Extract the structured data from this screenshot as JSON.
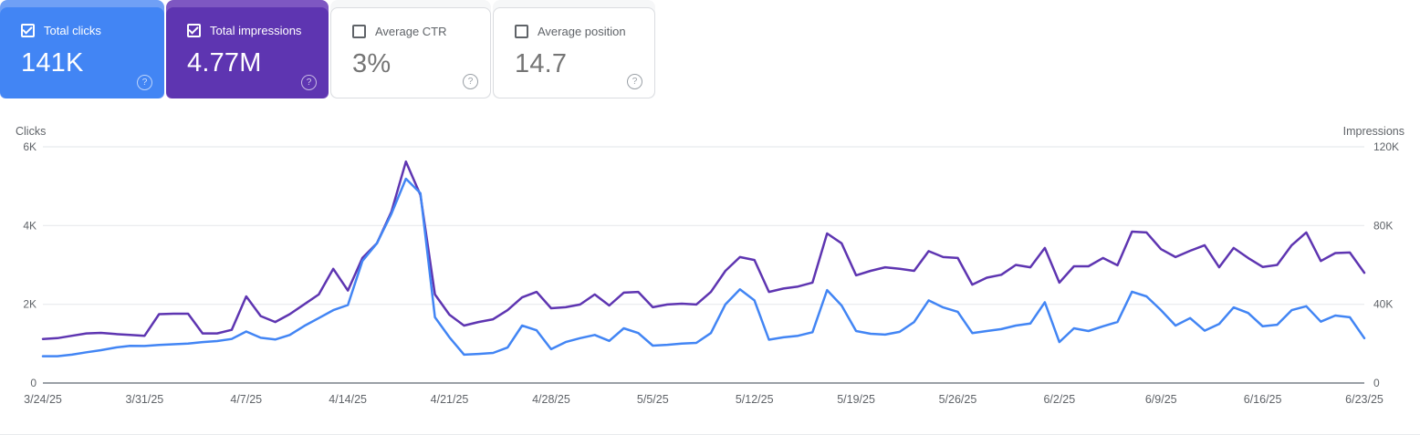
{
  "help_icon_glyph": "?",
  "cards": [
    {
      "label": "Total clicks",
      "value": "141K",
      "selected": true,
      "bg_color": "#4285f4",
      "halo_color": "#6fa0f6"
    },
    {
      "label": "Total impressions",
      "value": "4.77M",
      "selected": true,
      "bg_color": "#5e35b1",
      "halo_color": "#7e57c2"
    },
    {
      "label": "Average CTR",
      "value": "3%",
      "selected": false,
      "bg_color": "#ffffff",
      "halo_color": "#f6f7f8"
    },
    {
      "label": "Average position",
      "value": "14.7",
      "selected": false,
      "bg_color": "#ffffff",
      "halo_color": "#f6f7f8"
    }
  ],
  "chart_data": {
    "type": "line",
    "date_range": {
      "start": "3/24/25",
      "end": "6/23/25",
      "granularity": "daily"
    },
    "num_points": 92,
    "x_tick_labels": [
      "3/24/25",
      "3/31/25",
      "4/7/25",
      "4/14/25",
      "4/21/25",
      "4/28/25",
      "5/5/25",
      "5/12/25",
      "5/19/25",
      "5/26/25",
      "6/2/25",
      "6/9/25",
      "6/16/25",
      "6/23/25"
    ],
    "left_axis": {
      "title": "Clicks",
      "tick_labels": [
        "6K",
        "4K",
        "2K",
        "0"
      ],
      "min": 0,
      "max": 6000
    },
    "right_axis": {
      "title": "Impressions",
      "tick_labels": [
        "120K",
        "80K",
        "40K",
        "0"
      ],
      "min": 0,
      "max": 120000
    },
    "grid": "horizontal",
    "legend": "none",
    "series": [
      {
        "name": "Total clicks",
        "axis": "left",
        "color": "#4285f4",
        "values": [
          680,
          680,
          720,
          780,
          835,
          900,
          945,
          940,
          965,
          985,
          1000,
          1040,
          1065,
          1120,
          1310,
          1150,
          1105,
          1220,
          1450,
          1650,
          1850,
          1980,
          3100,
          3550,
          4300,
          5190,
          4820,
          1670,
          1160,
          720,
          740,
          765,
          900,
          1460,
          1340,
          860,
          1040,
          1140,
          1220,
          1070,
          1390,
          1270,
          950,
          970,
          1000,
          1020,
          1270,
          2000,
          2380,
          2100,
          1100,
          1160,
          1200,
          1290,
          2360,
          1970,
          1320,
          1250,
          1230,
          1300,
          1550,
          2100,
          1920,
          1810,
          1270,
          1320,
          1370,
          1460,
          1510,
          2050,
          1040,
          1390,
          1320,
          1440,
          1550,
          2320,
          2200,
          1850,
          1460,
          1650,
          1330,
          1500,
          1920,
          1780,
          1440,
          1480,
          1850,
          1950,
          1560,
          1715,
          1670,
          1140
        ]
      },
      {
        "name": "Total impressions",
        "axis": "right",
        "color": "#5e35b1",
        "values": [
          22400,
          22800,
          24000,
          25200,
          25500,
          24900,
          24400,
          24000,
          35000,
          35200,
          35200,
          25200,
          25200,
          27000,
          44000,
          34000,
          31000,
          35000,
          40000,
          45000,
          58000,
          47000,
          63500,
          71000,
          87000,
          112500,
          95500,
          45000,
          34700,
          29200,
          31000,
          32400,
          37000,
          43500,
          46300,
          38000,
          38500,
          39900,
          45000,
          39400,
          45900,
          46300,
          38500,
          39900,
          40300,
          39900,
          46300,
          57000,
          64000,
          62500,
          46300,
          48000,
          49000,
          51000,
          76000,
          71000,
          54700,
          57000,
          58800,
          58000,
          57000,
          67000,
          64000,
          63500,
          50000,
          53500,
          55000,
          60000,
          58800,
          68600,
          51000,
          59300,
          59300,
          63500,
          59800,
          76900,
          76500,
          68000,
          64000,
          67200,
          70000,
          58800,
          68600,
          63500,
          59000,
          60000,
          70000,
          76500,
          62000,
          66000,
          66300,
          56000
        ]
      }
    ],
    "style": {
      "grid_color": "#e8eaed",
      "baseline_color": "#9aa0a6",
      "axis_text_color": "#5f6368",
      "line_width": 2.5
    }
  }
}
